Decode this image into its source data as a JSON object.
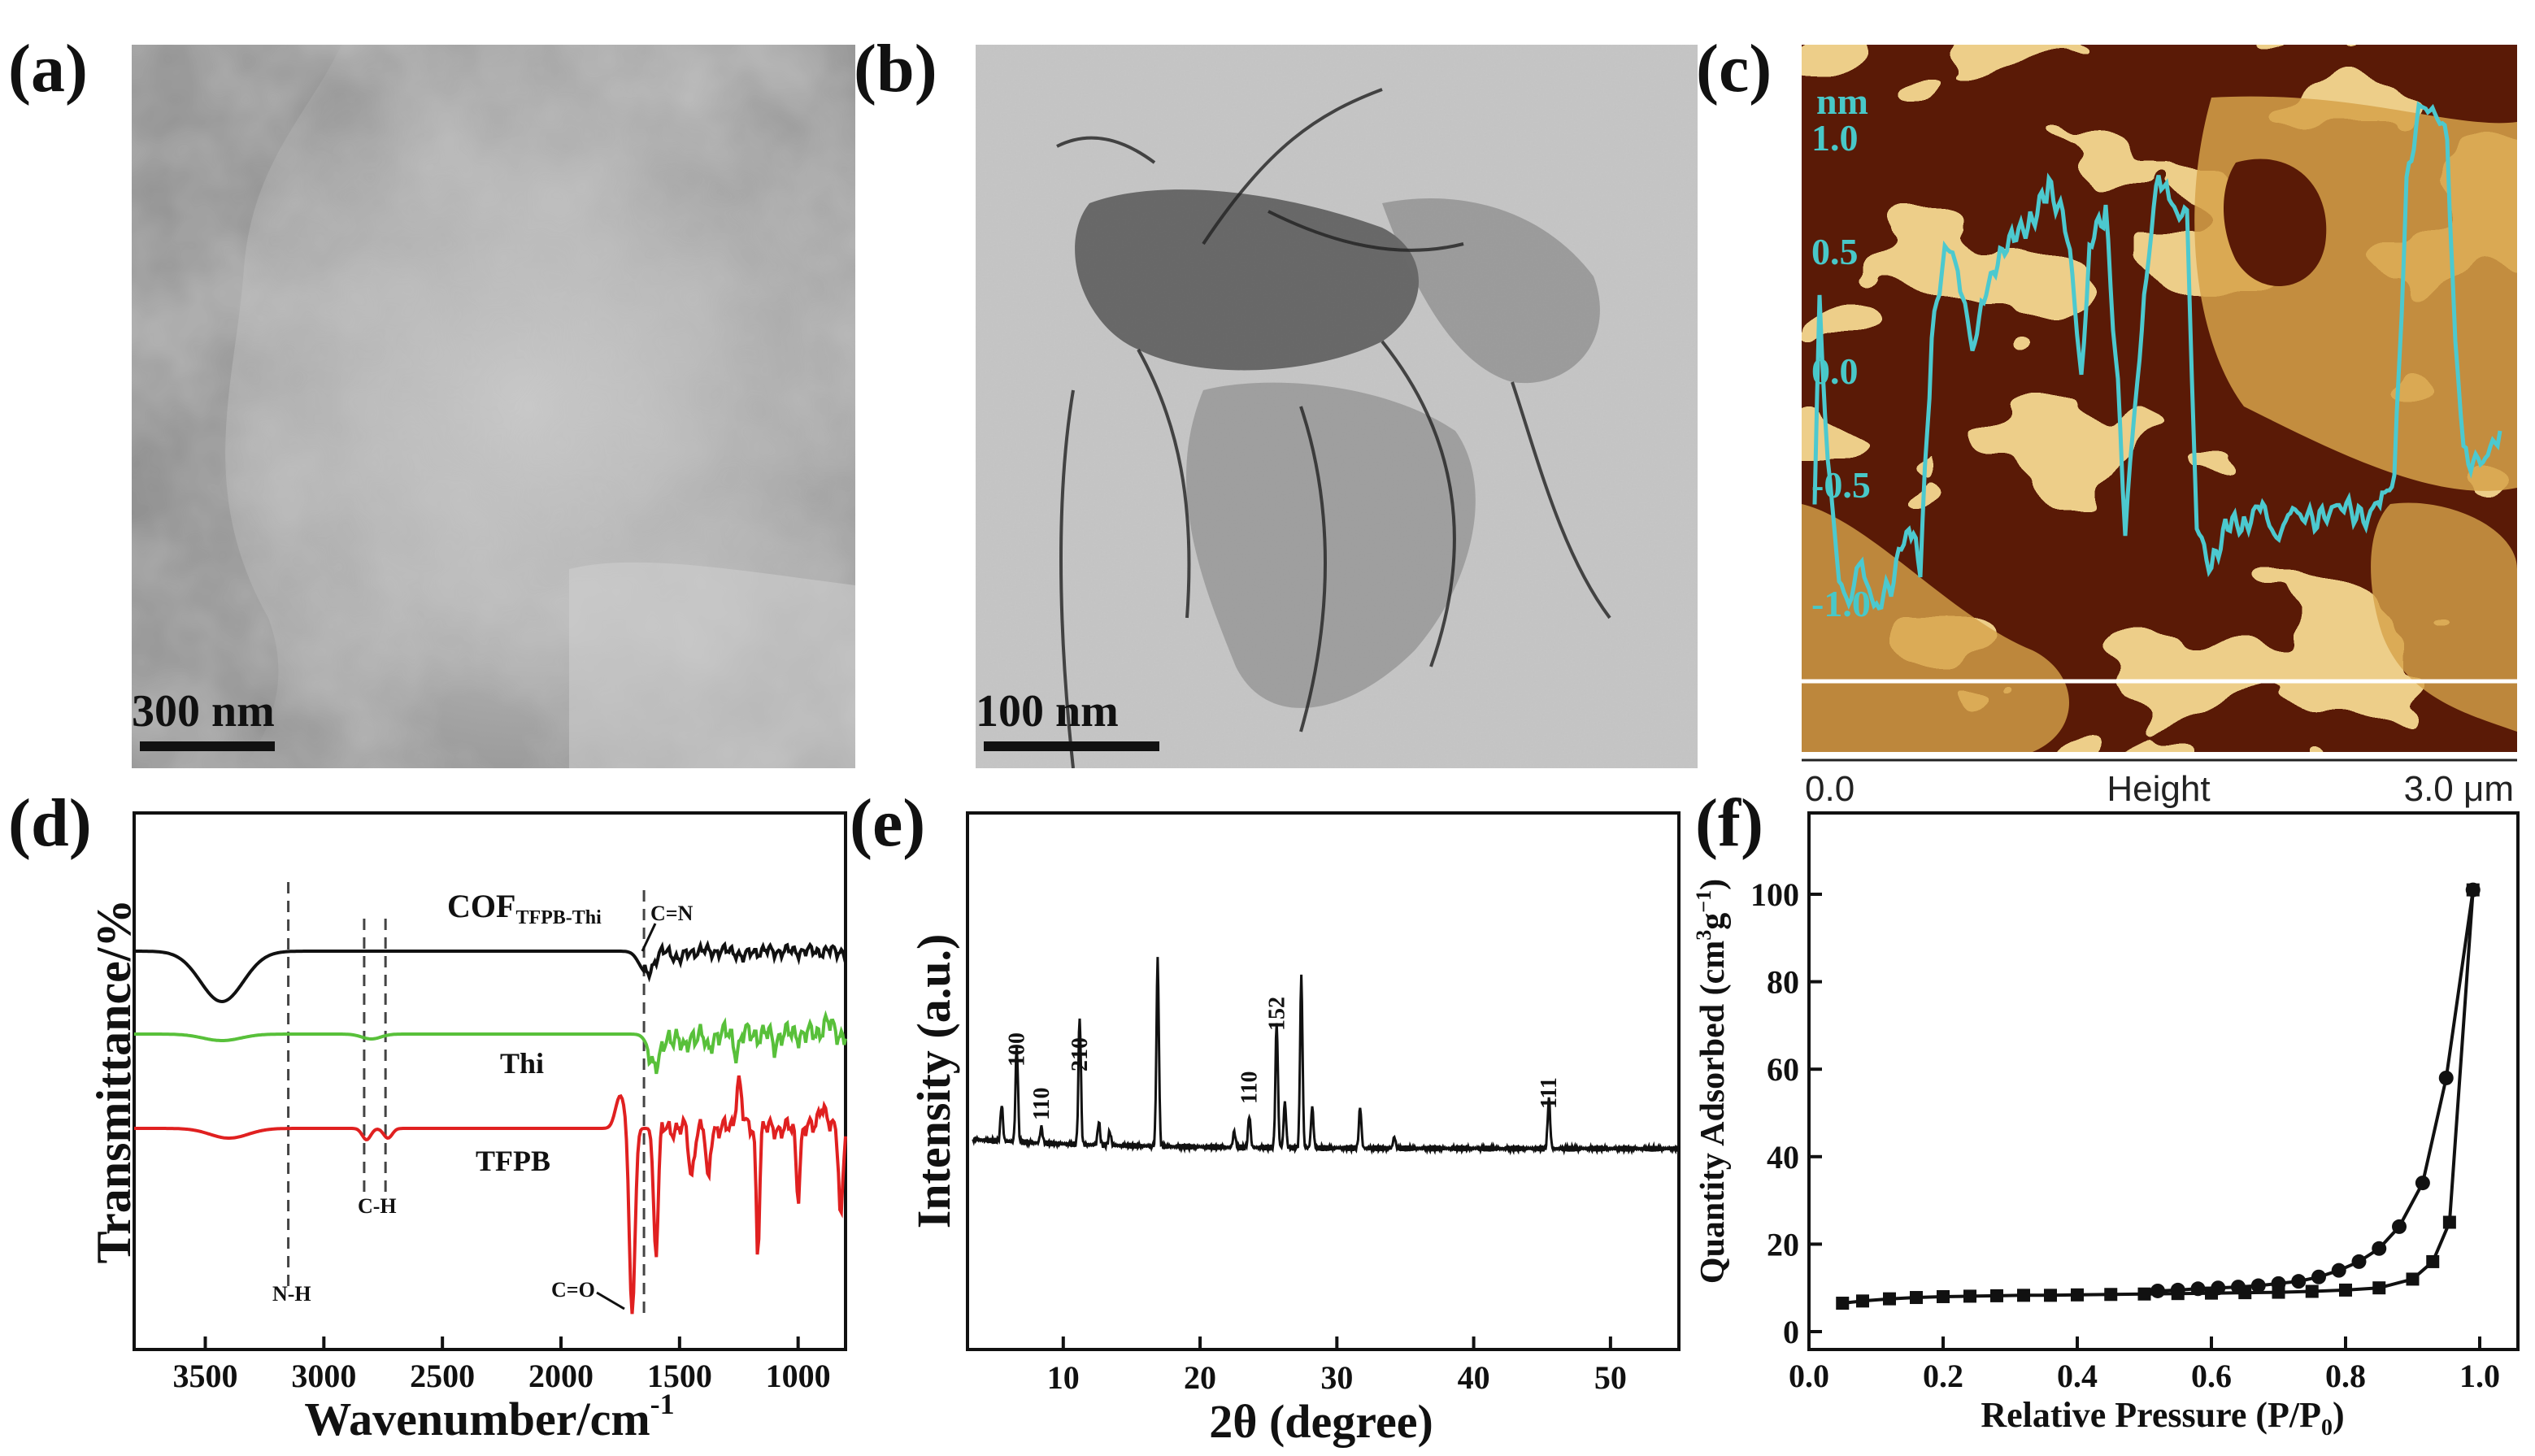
{
  "panels": {
    "a": {
      "label": "(a)",
      "scale_bar": "300 nm"
    },
    "b": {
      "label": "(b)",
      "scale_bar": "100 nm"
    },
    "c": {
      "label": "(c)",
      "unit": "nm",
      "y_ticks": [
        "1.0",
        "0.5",
        "0.0",
        "-0.5",
        "-1.0"
      ],
      "x_start": "0.0",
      "x_mid": "Height",
      "x_end": "3.0 μm",
      "profile_color": "#4cc9cf"
    },
    "d": {
      "label": "(d)",
      "f": ""
    },
    "e": {
      "label": "(e)"
    },
    "f": {
      "label": "(f)"
    }
  },
  "chart_data": [
    {
      "panel": "d",
      "type": "line",
      "xlabel_main": "Wavenumber/cm",
      "xlabel_sup": "-1",
      "ylabel": "Transmittance/%",
      "x_ticks": [
        3500,
        3000,
        2500,
        2000,
        1500,
        1000
      ],
      "xlim": [
        3800,
        800
      ],
      "series": [
        {
          "name_main": "COF",
          "name_sub": "TFPB-Thi",
          "color": "#111111"
        },
        {
          "name": "Thi",
          "color": "#58c03a"
        },
        {
          "name": "TFPB",
          "color": "#e02020"
        }
      ],
      "annotations": [
        {
          "text": "N-H",
          "x": 3150
        },
        {
          "text": "C-H",
          "x": 2780
        },
        {
          "text": "C=N",
          "x": 1650
        },
        {
          "text": "C=O",
          "x": 1690
        }
      ]
    },
    {
      "panel": "e",
      "type": "line",
      "xlabel": "2θ (degree)",
      "ylabel": "Intensity (a.u.)",
      "x_ticks": [
        10,
        20,
        30,
        40,
        50
      ],
      "xlim": [
        3,
        55
      ],
      "peaks": [
        {
          "x": 5.5,
          "h": 0.16
        },
        {
          "x": 6.6,
          "h": 0.42
        },
        {
          "x": 8.4,
          "h": 0.07
        },
        {
          "x": 11.2,
          "h": 0.56
        },
        {
          "x": 12.6,
          "h": 0.1
        },
        {
          "x": 13.4,
          "h": 0.06
        },
        {
          "x": 16.9,
          "h": 0.82
        },
        {
          "x": 22.5,
          "h": 0.07
        },
        {
          "x": 23.6,
          "h": 0.14
        },
        {
          "x": 25.6,
          "h": 0.55
        },
        {
          "x": 26.2,
          "h": 0.2
        },
        {
          "x": 27.4,
          "h": 0.75
        },
        {
          "x": 28.2,
          "h": 0.18
        },
        {
          "x": 31.7,
          "h": 0.18
        },
        {
          "x": 34.2,
          "h": 0.05
        },
        {
          "x": 45.5,
          "h": 0.22
        }
      ],
      "peak_labels": [
        {
          "text": "100",
          "x": 6.6
        },
        {
          "text": "110",
          "x": 8.4
        },
        {
          "text": "210",
          "x": 11.2
        },
        {
          "text": "110",
          "x": 23.6
        },
        {
          "text": "152",
          "x": 25.6
        },
        {
          "text": "111",
          "x": 45.5
        }
      ]
    },
    {
      "panel": "f",
      "type": "line",
      "xlabel_main": "Relative Pressure (P/P",
      "xlabel_sub": "0",
      "xlabel_end": ")",
      "ylabel_main": "Quantity Adsorbed (cm",
      "ylabel_sup1": "3",
      "ylabel_mid": "g",
      "ylabel_sup2": "−1",
      "ylabel_end": ")",
      "x_ticks": [
        "0.0",
        "0.2",
        "0.4",
        "0.6",
        "0.8",
        "1.0"
      ],
      "y_ticks": [
        "0",
        "20",
        "40",
        "60",
        "80",
        "100"
      ],
      "xlim": [
        0,
        1.0
      ],
      "ylim": [
        0,
        110
      ],
      "series": [
        {
          "marker": "square",
          "x": [
            0.05,
            0.08,
            0.12,
            0.16,
            0.2,
            0.24,
            0.28,
            0.32,
            0.36,
            0.4,
            0.45,
            0.5,
            0.55,
            0.6,
            0.65,
            0.7,
            0.75,
            0.8,
            0.85,
            0.9,
            0.93,
            0.955,
            0.99
          ],
          "y": [
            6.5,
            7,
            7.5,
            7.8,
            8,
            8.1,
            8.2,
            8.3,
            8.3,
            8.4,
            8.5,
            8.6,
            8.7,
            8.8,
            8.9,
            9,
            9.2,
            9.5,
            10,
            12,
            16,
            25,
            101
          ]
        },
        {
          "marker": "circle",
          "x": [
            0.99,
            0.95,
            0.915,
            0.88,
            0.85,
            0.82,
            0.79,
            0.76,
            0.73,
            0.7,
            0.67,
            0.64,
            0.61,
            0.58,
            0.55,
            0.52
          ],
          "y": [
            101,
            58,
            34,
            24,
            19,
            16,
            14,
            12.5,
            11.5,
            11,
            10.5,
            10.2,
            10,
            9.8,
            9.5,
            9.3
          ]
        }
      ]
    }
  ]
}
